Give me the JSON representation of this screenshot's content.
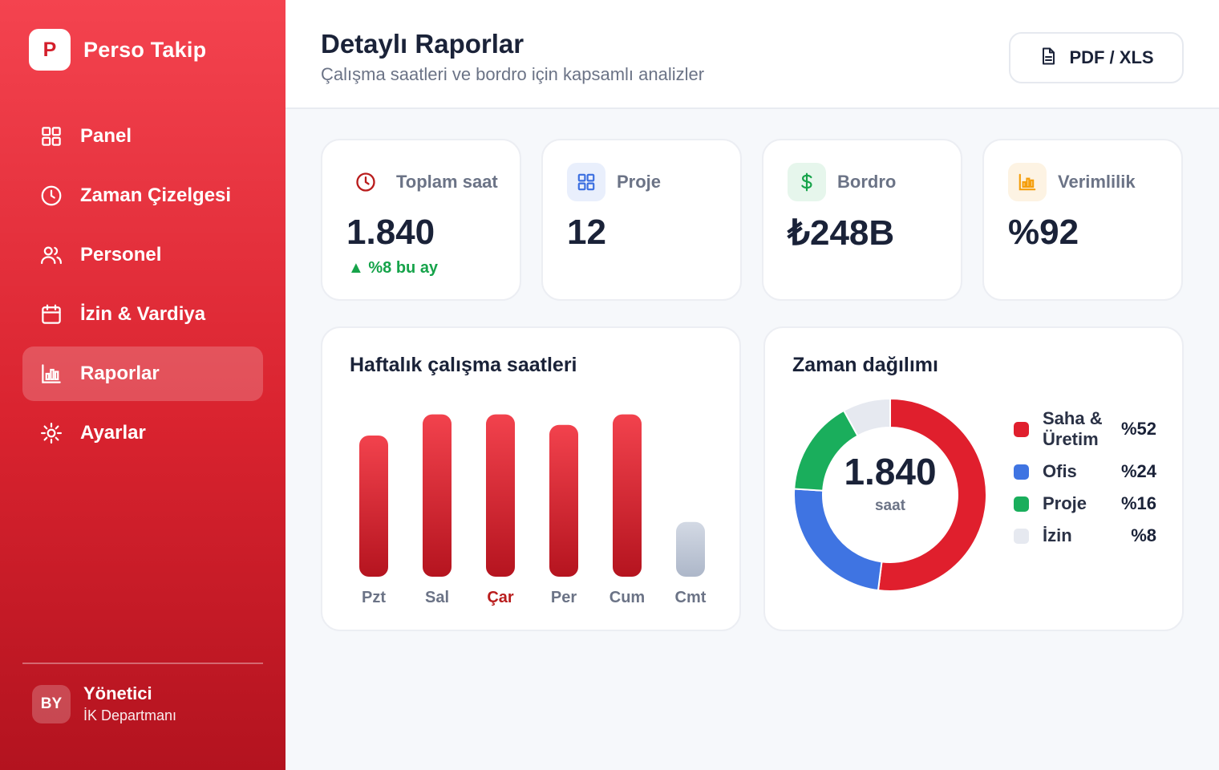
{
  "brand": {
    "logo_letter": "P",
    "name": "Perso Takip"
  },
  "sidebar": {
    "items": [
      {
        "label": "Panel",
        "icon": "grid-icon",
        "active": false
      },
      {
        "label": "Zaman Çizelgesi",
        "icon": "clock-icon",
        "active": false
      },
      {
        "label": "Personel",
        "icon": "users-icon",
        "active": false
      },
      {
        "label": "İzin & Vardiya",
        "icon": "calendar-icon",
        "active": false
      },
      {
        "label": "Raporlar",
        "icon": "bar-chart-icon",
        "active": true
      },
      {
        "label": "Ayarlar",
        "icon": "gear-icon",
        "active": false
      }
    ],
    "user": {
      "initials": "BY",
      "name": "Yönetici",
      "department": "İK Departmanı"
    }
  },
  "header": {
    "title": "Detaylı Raporlar",
    "subtitle": "Çalışma saatleri ve bordro için kapsamlı analizler",
    "export_label": "PDF / XLS"
  },
  "stats": [
    {
      "label": "Toplam saat",
      "value": "1.840",
      "delta": "%8 bu ay",
      "icon": "clock-icon",
      "icon_color": "#b91c1c",
      "icon_bg": "#ffffff"
    },
    {
      "label": "Proje",
      "value": "12",
      "icon": "grid-icon",
      "icon_color": "#3b6fe0",
      "icon_bg": "#e9effc"
    },
    {
      "label": "Bordro",
      "value": "₺248B",
      "icon": "dollar-icon",
      "icon_color": "#16a34a",
      "icon_bg": "#e6f6ec"
    },
    {
      "label": "Verimlilik",
      "value": "%92",
      "icon": "bar-chart-icon",
      "icon_color": "#f59e0b",
      "icon_bg": "#fdf3e3"
    }
  ],
  "weekly": {
    "title": "Haftalık çalışma saatleri",
    "highlight_day": "Çar"
  },
  "distribution": {
    "title": "Zaman dağılımı",
    "center_value": "1.840",
    "center_unit": "saat"
  },
  "chart_data": [
    {
      "type": "bar",
      "title": "Haftalık çalışma saatleri",
      "categories": [
        "Pzt",
        "Sal",
        "Çar",
        "Per",
        "Cum",
        "Cmt"
      ],
      "values": [
        8.0,
        9.2,
        9.2,
        8.6,
        9.2,
        3.1
      ],
      "ylim": [
        0,
        10
      ],
      "colors": {
        "weekday": "#e02431",
        "weekend": "#b3bccd"
      },
      "grid": false
    },
    {
      "type": "pie",
      "title": "Zaman dağılımı",
      "categories": [
        "Saha & Üretim",
        "Ofis",
        "Proje",
        "İzin"
      ],
      "values": [
        52,
        24,
        16,
        8
      ],
      "labels": [
        "%52",
        "%24",
        "%16",
        "%8"
      ],
      "colors": [
        "#e01f2d",
        "#3f74e2",
        "#1aae5c",
        "#e6e9f0"
      ],
      "legend": "right"
    }
  ]
}
